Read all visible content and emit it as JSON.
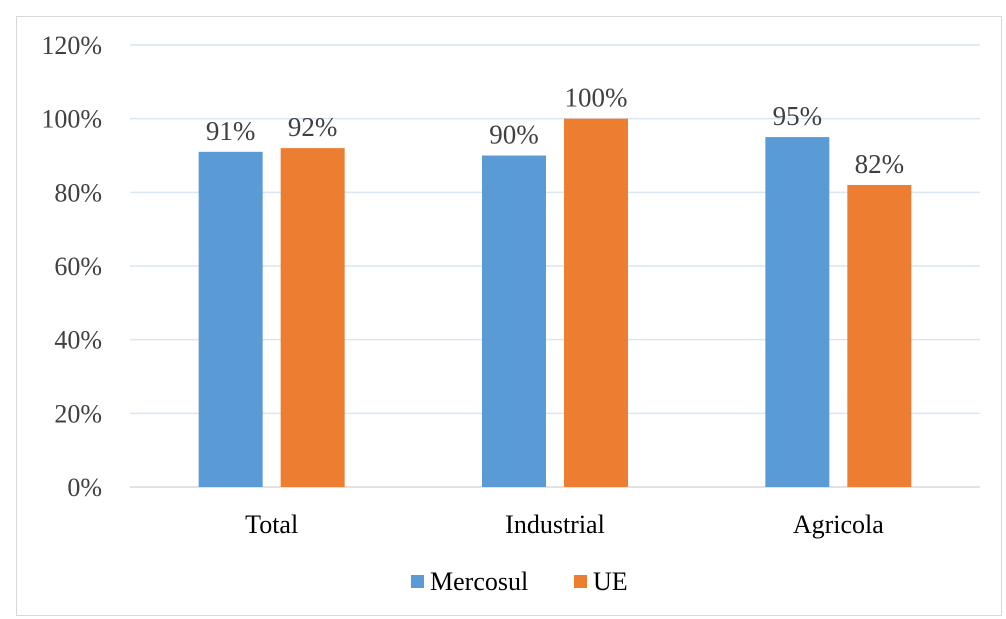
{
  "chart_data": {
    "type": "bar",
    "title": "",
    "xlabel": "",
    "ylabel": "",
    "categories": [
      "Total",
      "Industrial",
      "Agricola"
    ],
    "series": [
      {
        "name": "Mercosul",
        "color": "#5b9bd5",
        "values": [
          91,
          90,
          95
        ],
        "labels": [
          "91%",
          "90%",
          "95%"
        ]
      },
      {
        "name": "UE",
        "color": "#ed7d31",
        "values": [
          92,
          100,
          82
        ],
        "labels": [
          "92%",
          "100%",
          "82%"
        ]
      }
    ],
    "ylim": [
      0,
      120
    ],
    "yticks": [
      0,
      20,
      40,
      60,
      80,
      100,
      120
    ],
    "ytick_labels": [
      "0%",
      "20%",
      "40%",
      "60%",
      "80%",
      "100%",
      "120%"
    ],
    "grid": true,
    "gridline_color": "#d9e6f5",
    "legend_position": "bottom"
  }
}
